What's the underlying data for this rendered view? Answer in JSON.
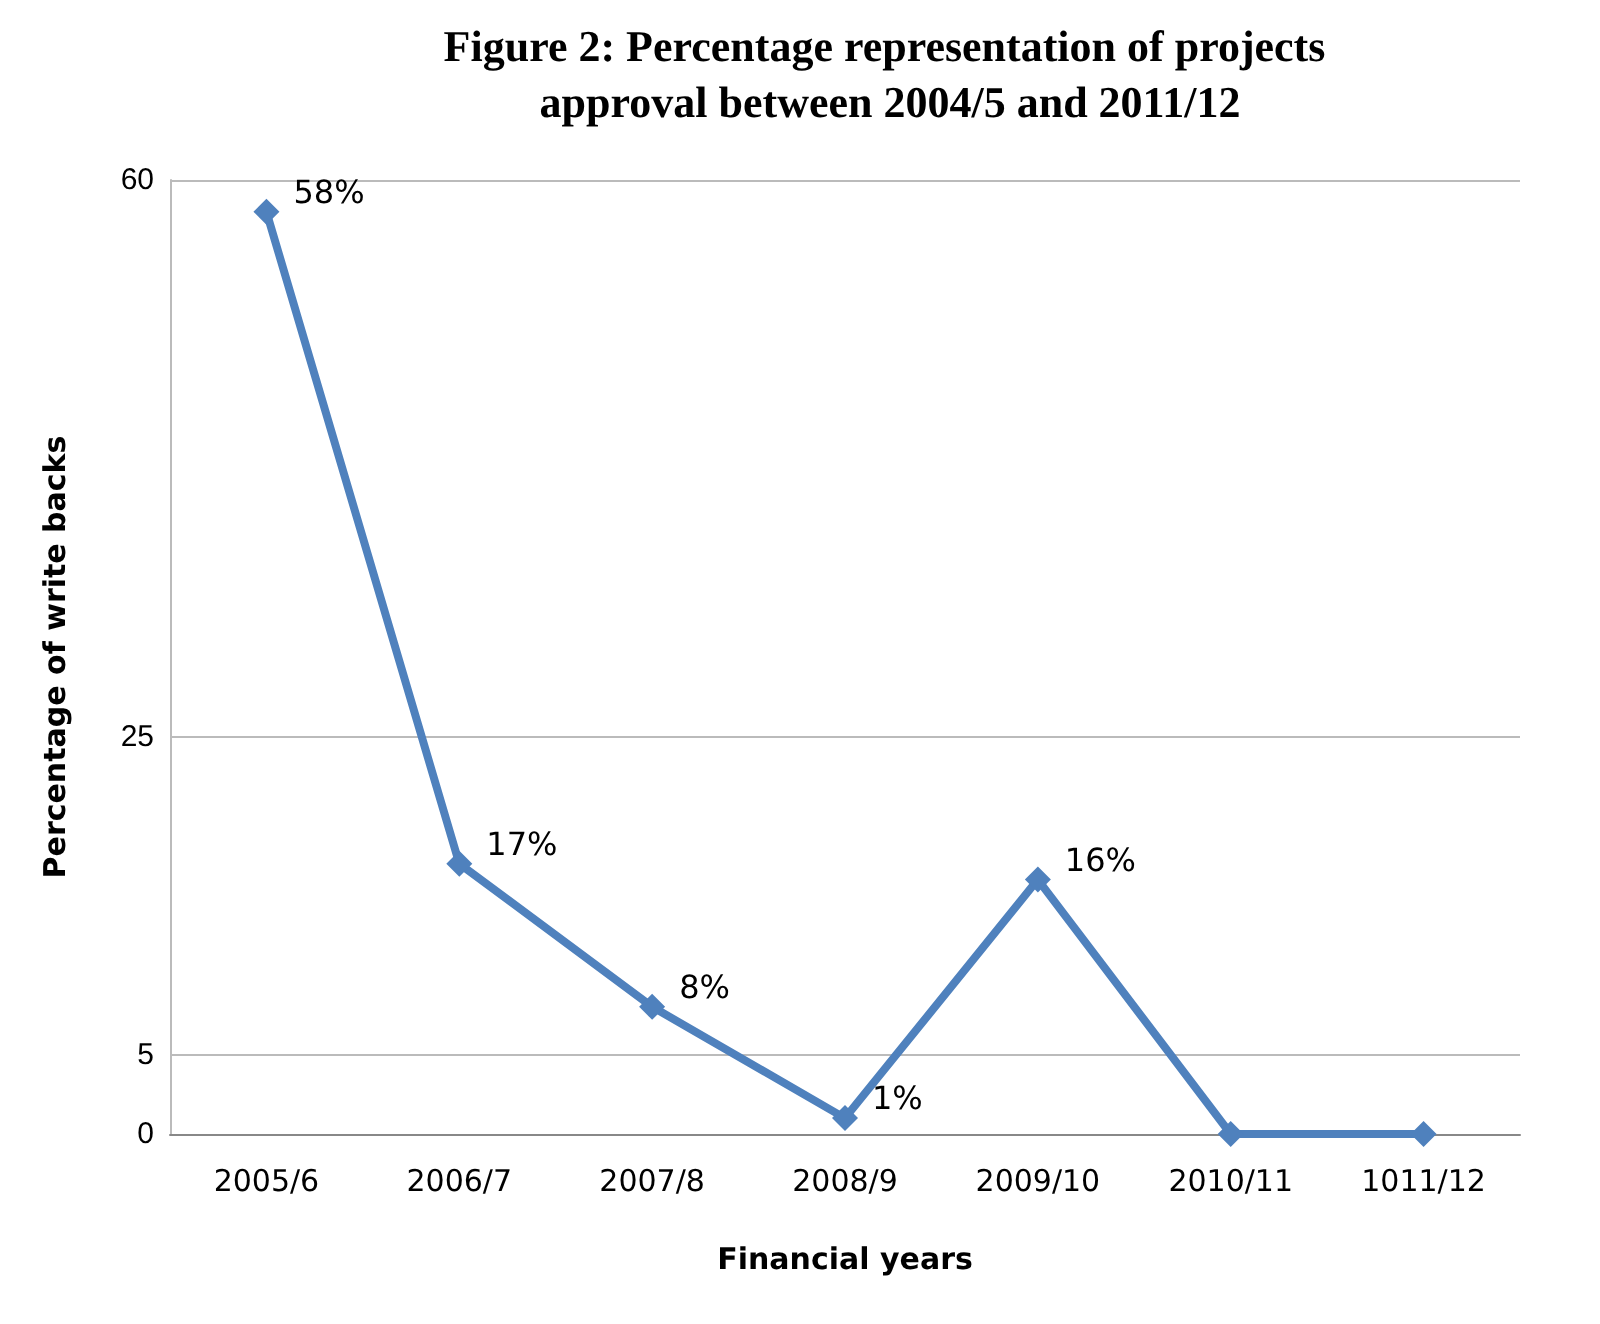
{
  "chart_data": {
    "type": "line",
    "title": "Figure 2: Percentage representation of projects approval between 2004/5 and 2011/12",
    "xlabel": "Financial years",
    "ylabel": "Percentage of write backs",
    "categories": [
      "2005/6",
      "2006/7",
      "2007/8",
      "2008/9",
      "2009/10",
      "2010/11",
      "1011/12"
    ],
    "series": [
      {
        "color": "#4f81bd",
        "values": [
          58,
          17,
          8,
          1,
          16,
          0,
          0
        ],
        "value_labels": [
          "58%",
          "17%",
          "8%",
          "1%",
          "16%",
          null,
          null
        ]
      }
    ],
    "ylim": [
      0,
      60
    ],
    "yticks": [
      0,
      5,
      25,
      60
    ],
    "grid": "y",
    "marker": "diamond"
  }
}
